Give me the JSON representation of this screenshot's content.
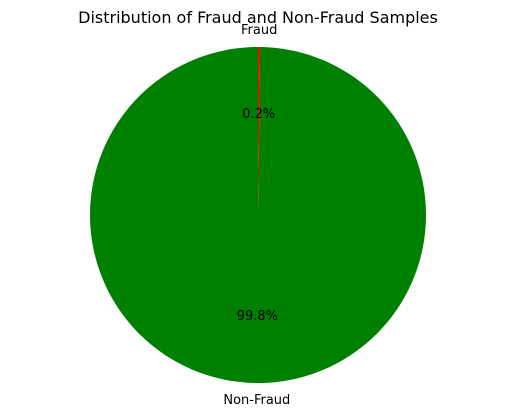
{
  "chart_data": {
    "type": "pie",
    "title": "Distribution of Fraud and Non-Fraud Samples",
    "slices": [
      {
        "label": "Non-Fraud",
        "value": 99.8,
        "pct_label": "99.8%",
        "color": "#008000"
      },
      {
        "label": "Fraud",
        "value": 0.2,
        "pct_label": "0.2%",
        "color": "#ff0000"
      }
    ],
    "start_angle_deg": 90,
    "direction": "counterclockwise",
    "legend": "none"
  }
}
